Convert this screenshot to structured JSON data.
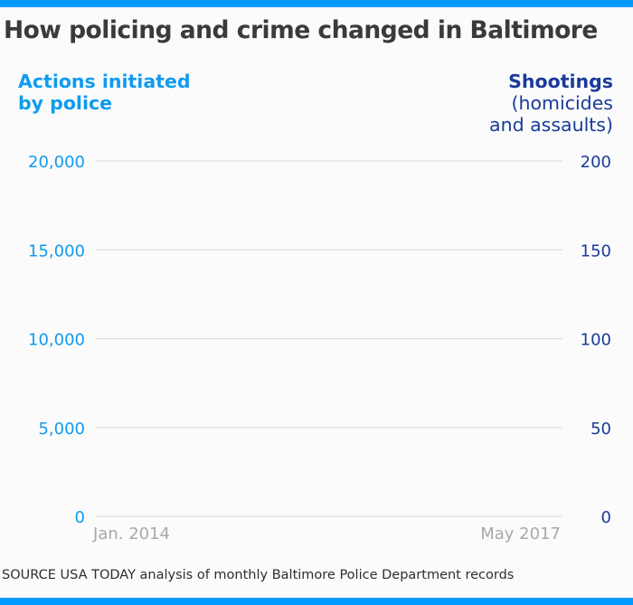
{
  "header": {
    "title": "How policing and crime changed in Baltimore"
  },
  "colors": {
    "accent_bar": "#009bff",
    "left_axis": "#0f9bf0",
    "right_axis": "#1a3a9a",
    "gridline": "#d9d9d9",
    "x_tick": "#a8a8a8"
  },
  "chart_data": {
    "type": "line",
    "title": "How policing and crime changed in Baltimore",
    "x": [
      "Jan. 2014",
      "May 2017"
    ],
    "xlabel": "",
    "x_tick_labels": [
      "Jan. 2014",
      "May 2017"
    ],
    "left_axis": {
      "label_line1": "Actions initiated",
      "label_line2": "by police",
      "ylim": [
        0,
        20000
      ],
      "ticks": [
        0,
        5000,
        10000,
        15000,
        20000
      ],
      "tick_labels": [
        "0",
        "5,000",
        "10,000",
        "15,000",
        "20,000"
      ]
    },
    "right_axis": {
      "label_line1": "Shootings",
      "label_line2": "(homicides",
      "label_line3": "and assaults)",
      "ylim": [
        0,
        200
      ],
      "ticks": [
        0,
        50,
        100,
        150,
        200
      ],
      "tick_labels": [
        "0",
        "50",
        "100",
        "150",
        "200"
      ]
    },
    "series": [
      {
        "name": "Actions initiated by police",
        "axis": "left",
        "values": []
      },
      {
        "name": "Shootings (homicides and assaults)",
        "axis": "right",
        "values": []
      }
    ],
    "grid": true,
    "legend": "none"
  },
  "footer": {
    "source": "SOURCE USA TODAY analysis of monthly Baltimore Police Department records"
  }
}
